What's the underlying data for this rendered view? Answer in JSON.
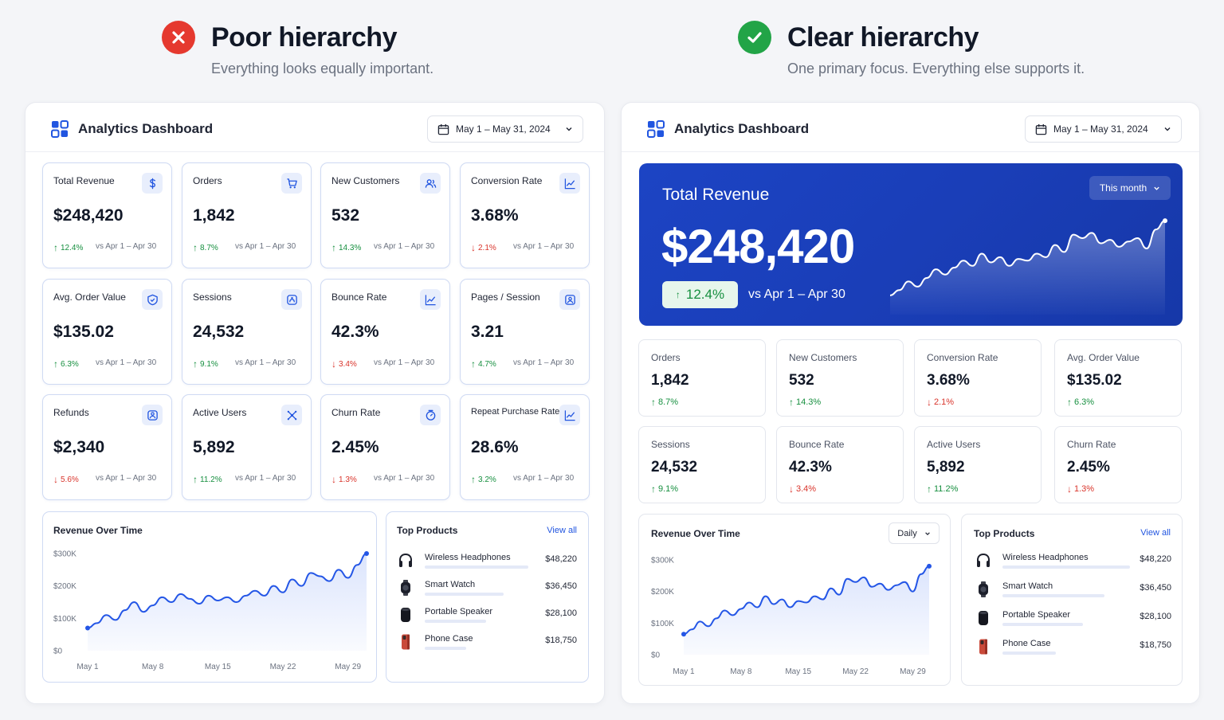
{
  "comparison": {
    "poor": {
      "title": "Poor hierarchy",
      "subtitle": "Everything looks equally important.",
      "status_color": "#e5392f"
    },
    "clear": {
      "title": "Clear hierarchy",
      "subtitle": "One primary focus. Everything else supports it.",
      "status_color": "#22a447"
    }
  },
  "colors": {
    "accent": "#2155e0",
    "hero_blue": "#1c44c4",
    "positive": "#168f3f",
    "negative": "#d9342b"
  },
  "left_dashboard": {
    "app_title": "Analytics Dashboard",
    "date_range": "May 1 – May 31, 2024",
    "kpis": [
      {
        "label": "Total Revenue",
        "value": "$248,420",
        "delta": "12.4%",
        "trend": "up",
        "compare": "vs Apr 1 – Apr 30",
        "icon": "dollar-icon"
      },
      {
        "label": "Orders",
        "value": "1,842",
        "delta": "8.7%",
        "trend": "up",
        "compare": "vs Apr 1 – Apr 30",
        "icon": "cart-icon"
      },
      {
        "label": "New Customers",
        "value": "532",
        "delta": "14.3%",
        "trend": "up",
        "compare": "vs Apr 1 – Apr 30",
        "icon": "users-icon"
      },
      {
        "label": "Conversion Rate",
        "value": "3.68%",
        "delta": "2.1%",
        "trend": "down",
        "compare": "vs Apr 1 – Apr 30",
        "icon": "trend-icon"
      },
      {
        "label": "Avg. Order Value",
        "value": "$135.02",
        "delta": "6.3%",
        "trend": "up",
        "compare": "vs Apr 1 – Apr 30",
        "icon": "tag-icon"
      },
      {
        "label": "Sessions",
        "value": "24,532",
        "delta": "9.1%",
        "trend": "up",
        "compare": "vs Apr 1 – Apr 30",
        "icon": "session-icon"
      },
      {
        "label": "Bounce Rate",
        "value": "42.3%",
        "delta": "3.4%",
        "trend": "down",
        "compare": "vs Apr 1 – Apr 30",
        "icon": "trend-icon"
      },
      {
        "label": "Pages / Session",
        "value": "3.21",
        "delta": "4.7%",
        "trend": "up",
        "compare": "vs Apr 1 – Apr 30",
        "icon": "pages-icon"
      },
      {
        "label": "Refunds",
        "value": "$2,340",
        "delta": "5.6%",
        "trend": "down",
        "compare": "vs Apr 1 – Apr 30",
        "icon": "refund-icon"
      },
      {
        "label": "Active Users",
        "value": "5,892",
        "delta": "11.2%",
        "trend": "up",
        "compare": "vs Apr 1 – Apr 30",
        "icon": "network-icon"
      },
      {
        "label": "Churn Rate",
        "value": "2.45%",
        "delta": "1.3%",
        "trend": "down",
        "compare": "vs Apr 1 – Apr 30",
        "icon": "churn-icon"
      },
      {
        "label": "Repeat Purchase Rate",
        "value": "28.6%",
        "delta": "3.2%",
        "trend": "up",
        "compare": "vs Apr 1 – Apr 30",
        "icon": "trend-icon"
      }
    ],
    "revenue_chart": {
      "title": "Revenue Over Time"
    },
    "top_products": {
      "title": "Top Products",
      "view_all": "View all",
      "items": [
        {
          "name": "Wireless Headphones",
          "value": "$48,220",
          "share": 1.0,
          "icon": "headphones-icon"
        },
        {
          "name": "Smart Watch",
          "value": "$36,450",
          "share": 0.76,
          "icon": "watch-icon"
        },
        {
          "name": "Portable Speaker",
          "value": "$28,100",
          "share": 0.59,
          "icon": "speaker-icon"
        },
        {
          "name": "Phone Case",
          "value": "$18,750",
          "share": 0.4,
          "icon": "phone-case-icon"
        }
      ]
    }
  },
  "right_dashboard": {
    "app_title": "Analytics Dashboard",
    "date_range": "May 1 – May 31, 2024",
    "hero": {
      "label": "Total Revenue",
      "value": "$248,420",
      "delta": "12.4%",
      "compare": "vs Apr 1 – Apr 30",
      "period": "This month"
    },
    "kpis": [
      {
        "label": "Orders",
        "value": "1,842",
        "delta": "8.7%",
        "trend": "up"
      },
      {
        "label": "New Customers",
        "value": "532",
        "delta": "14.3%",
        "trend": "up"
      },
      {
        "label": "Conversion Rate",
        "value": "3.68%",
        "delta": "2.1%",
        "trend": "down"
      },
      {
        "label": "Avg. Order Value",
        "value": "$135.02",
        "delta": "6.3%",
        "trend": "up"
      },
      {
        "label": "Sessions",
        "value": "24,532",
        "delta": "9.1%",
        "trend": "up"
      },
      {
        "label": "Bounce Rate",
        "value": "42.3%",
        "delta": "3.4%",
        "trend": "down"
      },
      {
        "label": "Active Users",
        "value": "5,892",
        "delta": "11.2%",
        "trend": "up"
      },
      {
        "label": "Churn Rate",
        "value": "2.45%",
        "delta": "1.3%",
        "trend": "down"
      }
    ],
    "revenue_chart": {
      "title": "Revenue Over Time",
      "granularity": "Daily"
    },
    "top_products": {
      "title": "Top Products",
      "view_all": "View all",
      "items": [
        {
          "name": "Wireless Headphones",
          "value": "$48,220",
          "share": 1.0,
          "icon": "headphones-icon"
        },
        {
          "name": "Smart Watch",
          "value": "$36,450",
          "share": 0.8,
          "icon": "watch-icon"
        },
        {
          "name": "Portable Speaker",
          "value": "$28,100",
          "share": 0.63,
          "icon": "speaker-icon"
        },
        {
          "name": "Phone Case",
          "value": "$18,750",
          "share": 0.42,
          "icon": "phone-case-icon"
        }
      ]
    }
  },
  "chart_data": [
    {
      "type": "area",
      "title": "Revenue Over Time",
      "xlabel": "",
      "ylabel": "",
      "x_ticks": [
        "May 1",
        "May 8",
        "May 15",
        "May 22",
        "May 29"
      ],
      "y_ticks": [
        "$0",
        "$100K",
        "$200K",
        "$300K"
      ],
      "ylim": [
        0,
        300000
      ],
      "x": [
        1,
        2,
        3,
        4,
        5,
        6,
        7,
        8,
        9,
        10,
        11,
        12,
        13,
        14,
        15,
        16,
        17,
        18,
        19,
        20,
        21,
        22,
        23,
        24,
        25,
        26,
        27,
        28,
        29,
        30,
        31
      ],
      "values": [
        70000,
        85000,
        110000,
        95000,
        125000,
        150000,
        120000,
        140000,
        165000,
        150000,
        175000,
        160000,
        145000,
        170000,
        155000,
        165000,
        150000,
        170000,
        185000,
        170000,
        200000,
        180000,
        220000,
        200000,
        240000,
        230000,
        215000,
        250000,
        225000,
        265000,
        300000
      ],
      "grid": false,
      "legend": "none"
    },
    {
      "type": "area",
      "title": "Revenue Over Time",
      "xlabel": "",
      "ylabel": "",
      "x_ticks": [
        "May 1",
        "May 8",
        "May 15",
        "May 22",
        "May 29"
      ],
      "y_ticks": [
        "$0",
        "$100K",
        "$200K",
        "$300K"
      ],
      "ylim": [
        0,
        300000
      ],
      "x": [
        1,
        2,
        3,
        4,
        5,
        6,
        7,
        8,
        9,
        10,
        11,
        12,
        13,
        14,
        15,
        16,
        17,
        18,
        19,
        20,
        21,
        22,
        23,
        24,
        25,
        26,
        27,
        28,
        29,
        30,
        31
      ],
      "values": [
        65000,
        80000,
        105000,
        90000,
        115000,
        140000,
        125000,
        145000,
        165000,
        150000,
        185000,
        160000,
        175000,
        150000,
        170000,
        165000,
        185000,
        175000,
        210000,
        190000,
        240000,
        230000,
        245000,
        215000,
        225000,
        205000,
        220000,
        230000,
        200000,
        255000,
        280000
      ],
      "grid": false,
      "legend": "none"
    }
  ]
}
